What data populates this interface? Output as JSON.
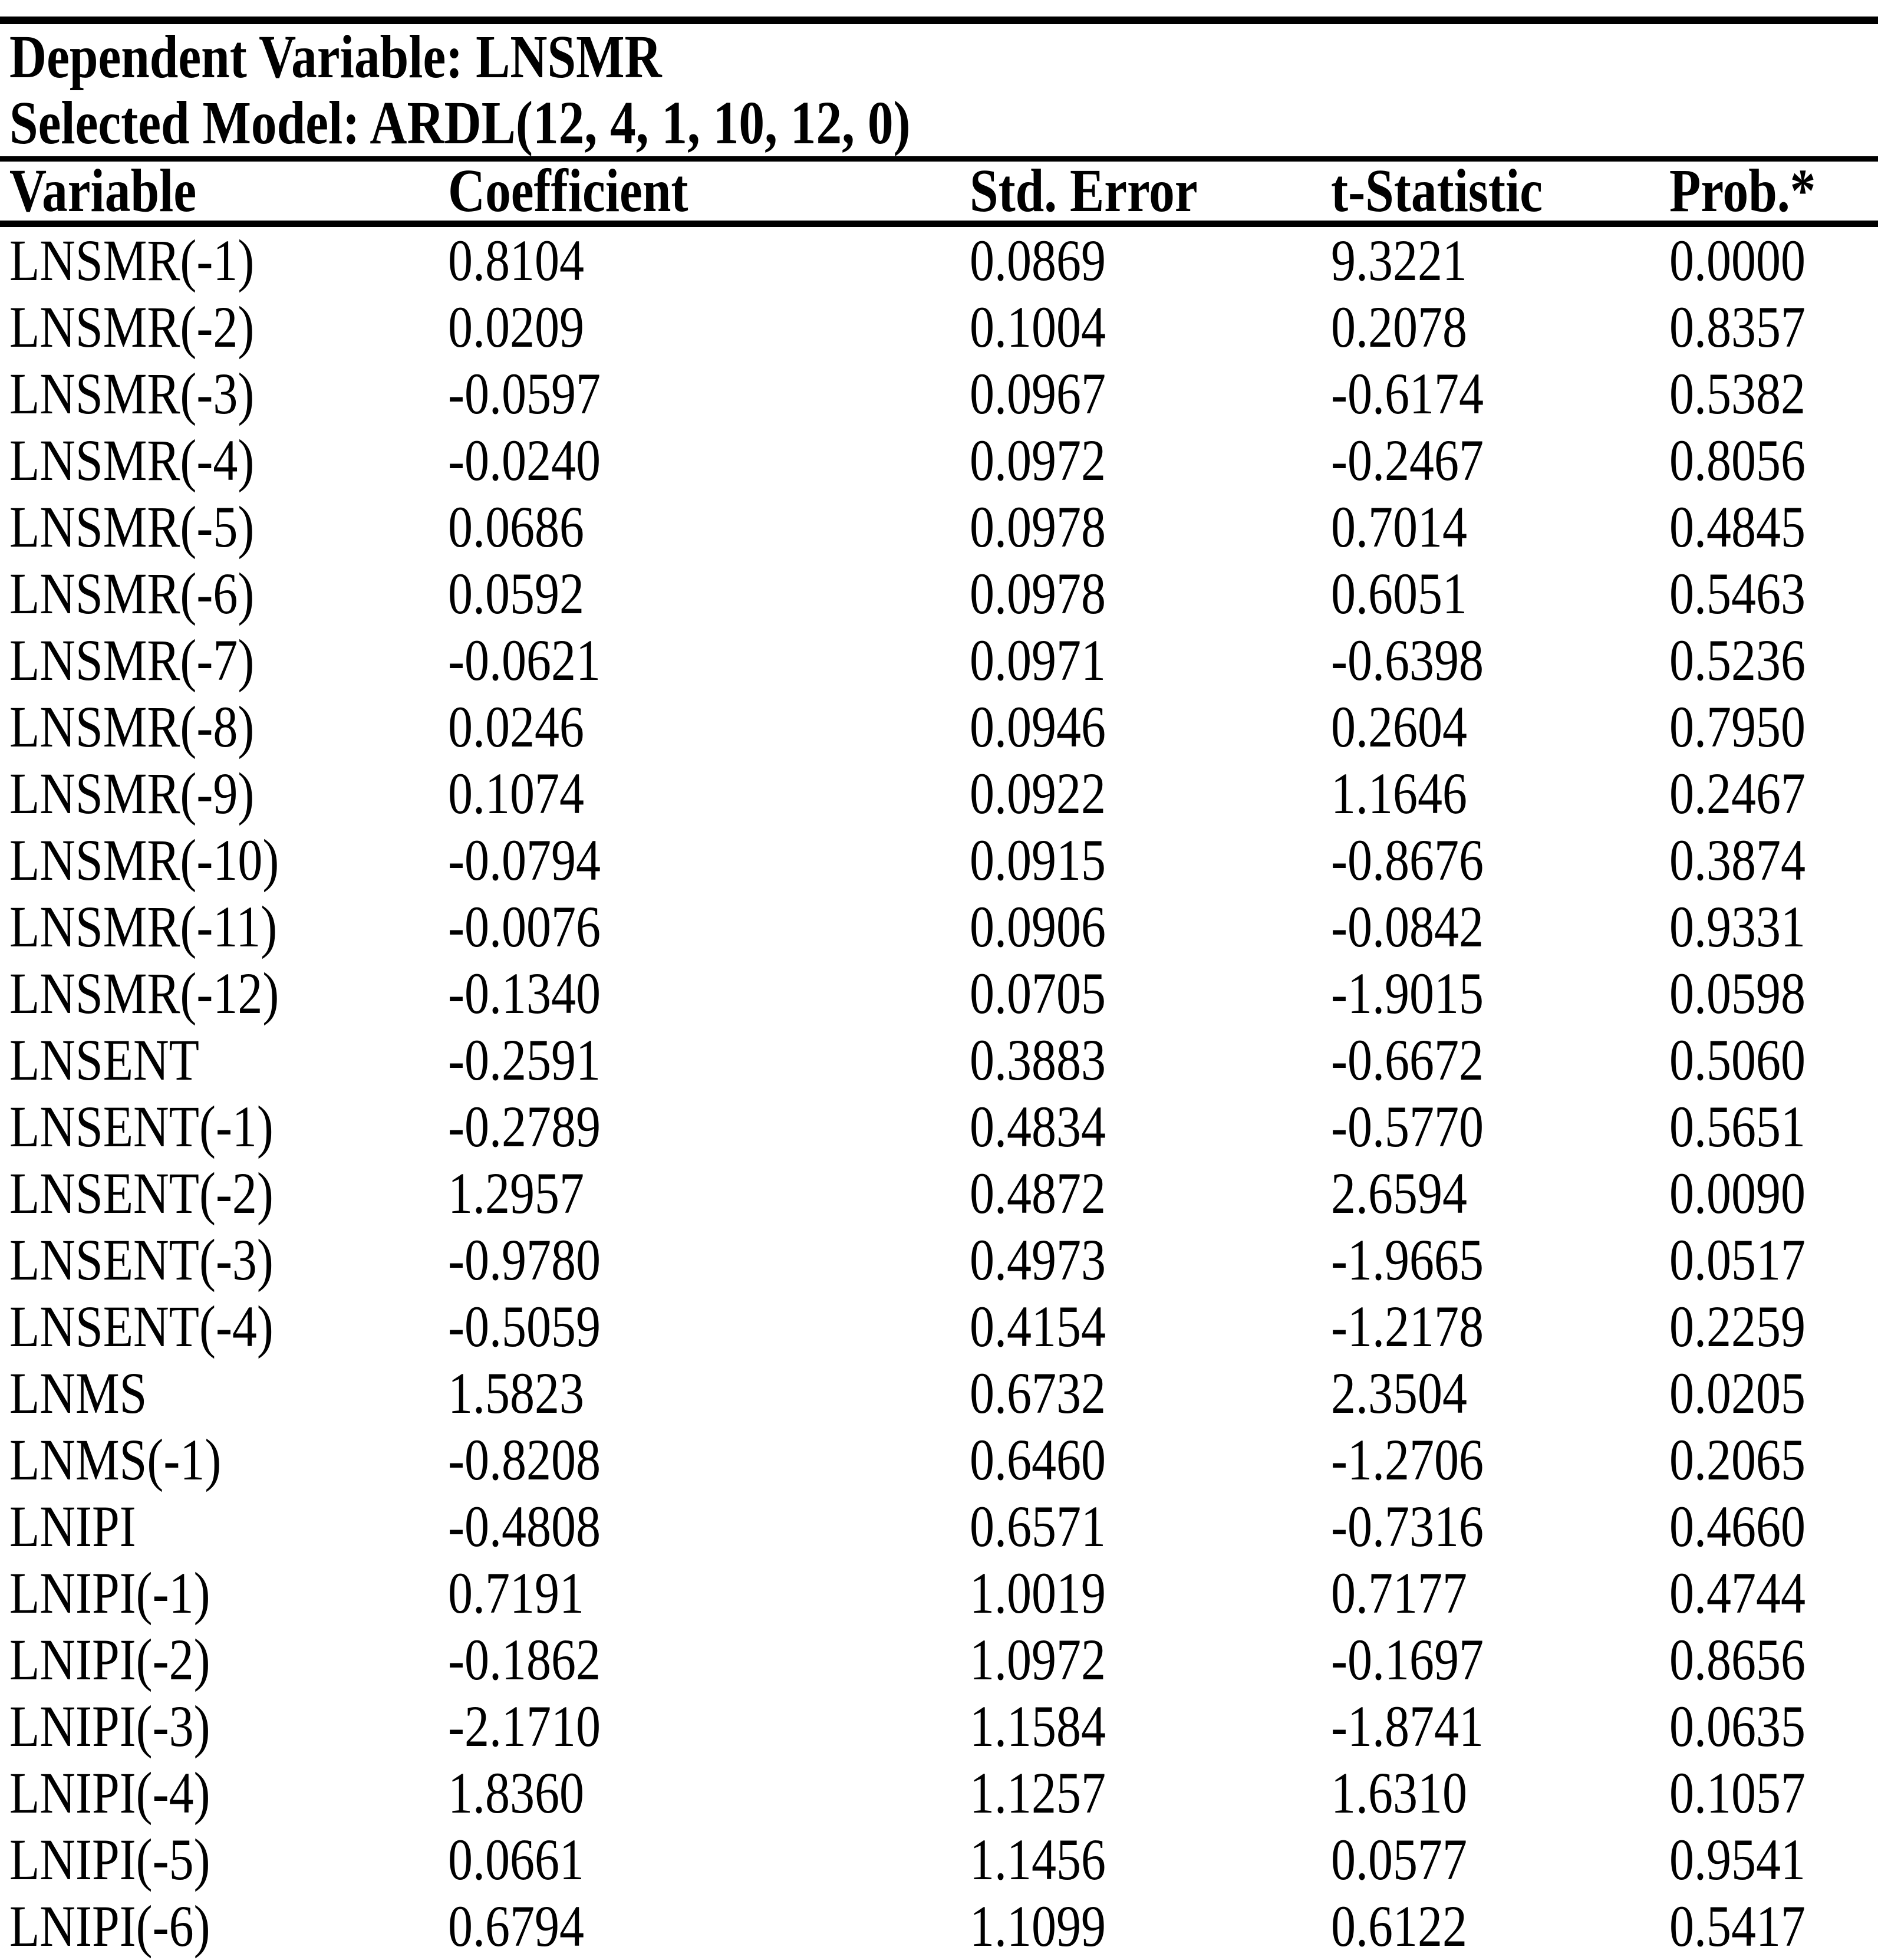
{
  "header": {
    "dependent_variable_line": "Dependent Variable: LNSMR",
    "selected_model_line": "Selected Model: ARDL(12, 4, 1, 10, 12, 0)"
  },
  "table": {
    "columns": [
      "Variable",
      "Coefficient",
      "Std. Error",
      "t-Statistic",
      "Prob.*"
    ],
    "rows": [
      {
        "variable": "LNSMR(-1)",
        "coefficient": "0.8104",
        "std_error": "0.0869",
        "t_statistic": "9.3221",
        "prob": "0.0000"
      },
      {
        "variable": "LNSMR(-2)",
        "coefficient": "0.0209",
        "std_error": "0.1004",
        "t_statistic": "0.2078",
        "prob": "0.8357"
      },
      {
        "variable": "LNSMR(-3)",
        "coefficient": "-0.0597",
        "std_error": "0.0967",
        "t_statistic": "-0.6174",
        "prob": "0.5382"
      },
      {
        "variable": "LNSMR(-4)",
        "coefficient": "-0.0240",
        "std_error": "0.0972",
        "t_statistic": "-0.2467",
        "prob": "0.8056"
      },
      {
        "variable": "LNSMR(-5)",
        "coefficient": "0.0686",
        "std_error": "0.0978",
        "t_statistic": "0.7014",
        "prob": "0.4845"
      },
      {
        "variable": "LNSMR(-6)",
        "coefficient": "0.0592",
        "std_error": "0.0978",
        "t_statistic": "0.6051",
        "prob": "0.5463"
      },
      {
        "variable": "LNSMR(-7)",
        "coefficient": "-0.0621",
        "std_error": "0.0971",
        "t_statistic": "-0.6398",
        "prob": "0.5236"
      },
      {
        "variable": "LNSMR(-8)",
        "coefficient": "0.0246",
        "std_error": "0.0946",
        "t_statistic": "0.2604",
        "prob": "0.7950"
      },
      {
        "variable": "LNSMR(-9)",
        "coefficient": "0.1074",
        "std_error": "0.0922",
        "t_statistic": "1.1646",
        "prob": "0.2467"
      },
      {
        "variable": "LNSMR(-10)",
        "coefficient": "-0.0794",
        "std_error": "0.0915",
        "t_statistic": "-0.8676",
        "prob": "0.3874"
      },
      {
        "variable": "LNSMR(-11)",
        "coefficient": "-0.0076",
        "std_error": "0.0906",
        "t_statistic": "-0.0842",
        "prob": "0.9331"
      },
      {
        "variable": "LNSMR(-12)",
        "coefficient": "-0.1340",
        "std_error": "0.0705",
        "t_statistic": "-1.9015",
        "prob": "0.0598"
      },
      {
        "variable": "LNSENT",
        "coefficient": "-0.2591",
        "std_error": "0.3883",
        "t_statistic": "-0.6672",
        "prob": "0.5060"
      },
      {
        "variable": "LNSENT(-1)",
        "coefficient": "-0.2789",
        "std_error": "0.4834",
        "t_statistic": "-0.5770",
        "prob": "0.5651"
      },
      {
        "variable": "LNSENT(-2)",
        "coefficient": "1.2957",
        "std_error": "0.4872",
        "t_statistic": "2.6594",
        "prob": "0.0090"
      },
      {
        "variable": "LNSENT(-3)",
        "coefficient": "-0.9780",
        "std_error": "0.4973",
        "t_statistic": "-1.9665",
        "prob": "0.0517"
      },
      {
        "variable": "LNSENT(-4)",
        "coefficient": "-0.5059",
        "std_error": "0.4154",
        "t_statistic": "-1.2178",
        "prob": "0.2259"
      },
      {
        "variable": "LNMS",
        "coefficient": "1.5823",
        "std_error": "0.6732",
        "t_statistic": "2.3504",
        "prob": "0.0205"
      },
      {
        "variable": "LNMS(-1)",
        "coefficient": "-0.8208",
        "std_error": "0.6460",
        "t_statistic": "-1.2706",
        "prob": "0.2065"
      },
      {
        "variable": "LNIPI",
        "coefficient": "-0.4808",
        "std_error": "0.6571",
        "t_statistic": "-0.7316",
        "prob": "0.4660"
      },
      {
        "variable": "LNIPI(-1)",
        "coefficient": "0.7191",
        "std_error": "1.0019",
        "t_statistic": "0.7177",
        "prob": "0.4744"
      },
      {
        "variable": "LNIPI(-2)",
        "coefficient": "-0.1862",
        "std_error": "1.0972",
        "t_statistic": "-0.1697",
        "prob": "0.8656"
      },
      {
        "variable": "LNIPI(-3)",
        "coefficient": "-2.1710",
        "std_error": "1.1584",
        "t_statistic": "-1.8741",
        "prob": "0.0635"
      },
      {
        "variable": "LNIPI(-4)",
        "coefficient": "1.8360",
        "std_error": "1.1257",
        "t_statistic": "1.6310",
        "prob": "0.1057"
      },
      {
        "variable": "LNIPI(-5)",
        "coefficient": "0.0661",
        "std_error": "1.1456",
        "t_statistic": "0.0577",
        "prob": "0.9541"
      },
      {
        "variable": "LNIPI(-6)",
        "coefficient": "0.6794",
        "std_error": "1.1099",
        "t_statistic": "0.6122",
        "prob": "0.5417"
      }
    ]
  },
  "colors": {
    "text": "#000000",
    "background": "#ffffff",
    "rule": "#000000"
  }
}
